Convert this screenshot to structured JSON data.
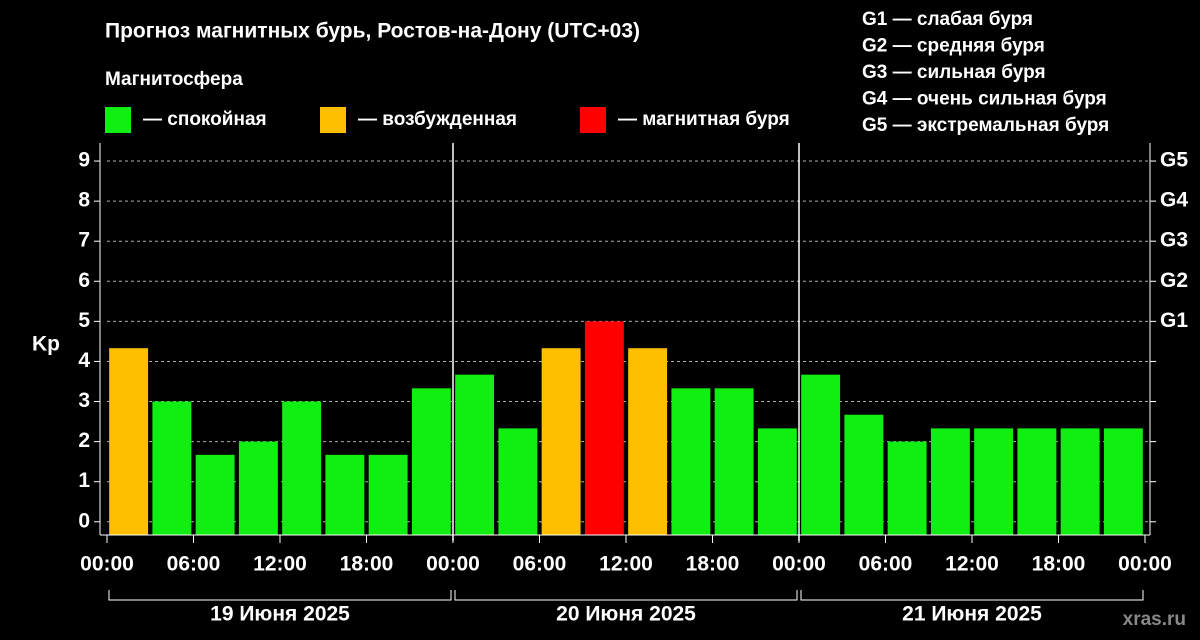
{
  "chart_data": {
    "type": "bar",
    "title": "Прогноз магнитных бурь, Ростов-на-Дону (UTC+03)",
    "legend_title": "Магнитосфера",
    "legend": [
      {
        "label": "— спокойная",
        "color": "#11ee11"
      },
      {
        "label": "— возбужденная",
        "color": "#ffbf00"
      },
      {
        "label": "— магнитная буря",
        "color": "#ff0000"
      }
    ],
    "g_scale": [
      "G1 — слабая буря",
      "G2 — средняя буря",
      "G3 — сильная буря",
      "G4 — очень сильная буря",
      "G5 — экстремальная буря"
    ],
    "ylabel": "Kp",
    "x": [
      1.5,
      4.5,
      7.5,
      10.5,
      13.5,
      16.5,
      19.5,
      22.5,
      25.5,
      28.5,
      31.5,
      34.5,
      37.5,
      40.5,
      43.5,
      46.5,
      49.5,
      52.5,
      55.5,
      58.5,
      61.5,
      64.5,
      67.5,
      70.5
    ],
    "bar_width": 2.7,
    "values": [
      4.33,
      3,
      1.67,
      2,
      3,
      1.67,
      1.67,
      3.33,
      3.67,
      2.33,
      4.33,
      5,
      4.33,
      3.33,
      3.33,
      2.33,
      3.67,
      2.67,
      2,
      2.33,
      2.33,
      2.33,
      2.33,
      2.33
    ],
    "colors": [
      "#ffbf00",
      "#11ee11",
      "#11ee11",
      "#11ee11",
      "#11ee11",
      "#11ee11",
      "#11ee11",
      "#11ee11",
      "#11ee11",
      "#11ee11",
      "#ffbf00",
      "#ff0000",
      "#ffbf00",
      "#11ee11",
      "#11ee11",
      "#11ee11",
      "#11ee11",
      "#11ee11",
      "#11ee11",
      "#11ee11",
      "#11ee11",
      "#11ee11",
      "#11ee11",
      "#11ee11"
    ],
    "xlim": [
      0,
      72
    ],
    "xticks": [
      {
        "value": 0,
        "label": "00:00"
      },
      {
        "value": 6,
        "label": "06:00"
      },
      {
        "value": 12,
        "label": "12:00"
      },
      {
        "value": 18,
        "label": "18:00"
      },
      {
        "value": 24,
        "label": "00:00"
      },
      {
        "value": 30,
        "label": "06:00"
      },
      {
        "value": 36,
        "label": "12:00"
      },
      {
        "value": 42,
        "label": "18:00"
      },
      {
        "value": 48,
        "label": "00:00"
      },
      {
        "value": 54,
        "label": "06:00"
      },
      {
        "value": 60,
        "label": "12:00"
      },
      {
        "value": 66,
        "label": "18:00"
      },
      {
        "value": 72,
        "label": "00:00"
      }
    ],
    "day_separators": [
      24,
      48
    ],
    "day_labels": [
      "19 Июня 2025",
      "20 Июня 2025",
      "21 Июня 2025"
    ],
    "ylim": [
      -0.33,
      9.45
    ],
    "yticks": [
      0,
      1,
      2,
      3,
      4,
      5,
      6,
      7,
      8,
      9
    ],
    "y2lim": [
      -0.33,
      9.45
    ],
    "y2ticks": [
      {
        "value": 5,
        "label": "G1"
      },
      {
        "value": 6,
        "label": "G2"
      },
      {
        "value": 7,
        "label": "G3"
      },
      {
        "value": 8,
        "label": "G4"
      },
      {
        "value": 9,
        "label": "G5"
      }
    ],
    "grid": true,
    "watermark": "xras.ru"
  }
}
